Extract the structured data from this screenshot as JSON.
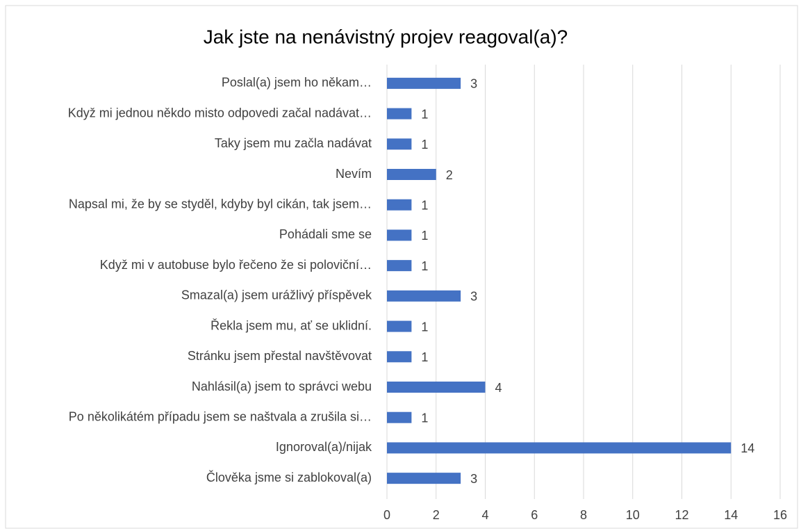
{
  "chart_data": {
    "type": "bar",
    "orientation": "horizontal",
    "title": "Jak jste na nenávistný projev reagoval(a)?",
    "categories": [
      "Poslal(a) jsem ho někam…",
      "Když mi jednou někdo misto odpovedi začal nadávat…",
      "Taky jsem mu začla nadávat",
      "Nevím",
      "Napsal mi, že by se styděl, kdyby byl cikán, tak jsem…",
      "Pohádali sme se",
      "Když mi v autobuse bylo řečeno že si poloviční…",
      "Smazal(a) jsem urážlivý příspěvek",
      "Řekla jsem mu, ať se uklidní.",
      "Stránku jsem přestal navštěvovat",
      "Nahlásil(a) jsem to správci webu",
      "Po několikátém případu jsem se naštvala a zrušila si…",
      "Ignoroval(a)/nijak",
      "Člověka jsme si zablokoval(a)"
    ],
    "values": [
      3,
      1,
      1,
      2,
      1,
      1,
      1,
      3,
      1,
      1,
      4,
      1,
      14,
      3
    ],
    "color": "#4472c4",
    "xlim": [
      0,
      16
    ],
    "xticks": [
      0,
      2,
      4,
      6,
      8,
      10,
      12,
      14,
      16
    ],
    "grid": true
  }
}
